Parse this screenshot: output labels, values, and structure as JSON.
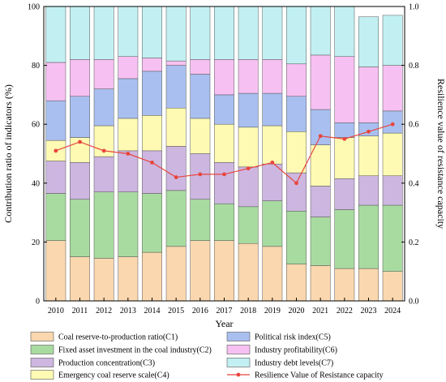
{
  "chart_data": {
    "type": "bar",
    "stacked": true,
    "title": "",
    "xlabel": "Year",
    "ylabel": "Contribution ratio of indicators (%)",
    "y2label": "Resilience value of resistance capacity",
    "ylim": [
      0,
      100
    ],
    "y2lim": [
      0.0,
      1.0
    ],
    "yticks": [
      "0",
      "20",
      "40",
      "60",
      "80",
      "100"
    ],
    "y2ticks": [
      "0.0",
      "0.2",
      "0.4",
      "0.6",
      "0.8",
      "1.0"
    ],
    "categories": [
      "2010",
      "2011",
      "2012",
      "2013",
      "2014",
      "2015",
      "2016",
      "2017",
      "2018",
      "2019",
      "2020",
      "2021",
      "2022",
      "2023",
      "2024"
    ],
    "legend_position": "bottom",
    "series": [
      {
        "name": "Coal reserve-to-production ratio(C1)",
        "color": "#fad7ae",
        "values": [
          20.5,
          15.0,
          14.5,
          15.0,
          16.5,
          18.5,
          20.5,
          20.5,
          19.5,
          18.5,
          12.5,
          12.0,
          11.0,
          11.0,
          10.0
        ]
      },
      {
        "name": "Fixed asset investment in the coal industry(C2)",
        "color": "#a8dba0",
        "values": [
          16.0,
          19.5,
          22.5,
          22.0,
          20.0,
          19.0,
          14.0,
          12.5,
          12.5,
          15.5,
          18.0,
          16.5,
          20.0,
          21.5,
          22.5
        ]
      },
      {
        "name": "Production concentration(C3)",
        "color": "#cdb6e0",
        "values": [
          11.0,
          12.5,
          12.0,
          14.0,
          14.5,
          15.0,
          15.5,
          14.0,
          13.5,
          12.5,
          13.0,
          10.5,
          10.5,
          10.0,
          10.0
        ]
      },
      {
        "name": "Emergency coal reserve scale(C4)",
        "color": "#fffab3",
        "values": [
          7.0,
          8.5,
          10.5,
          11.0,
          12.0,
          13.0,
          12.0,
          13.0,
          13.5,
          13.0,
          14.0,
          14.0,
          14.0,
          13.5,
          14.5
        ]
      },
      {
        "name": "Political risk index(C5)",
        "color": "#a9bff0",
        "values": [
          13.5,
          14.0,
          12.5,
          13.5,
          15.0,
          14.5,
          15.0,
          10.0,
          11.5,
          11.0,
          12.0,
          12.0,
          5.0,
          4.5,
          7.5
        ]
      },
      {
        "name": "Industry profitability(C6)",
        "color": "#f7c0f2",
        "values": [
          13.0,
          12.5,
          10.0,
          7.5,
          4.5,
          1.5,
          5.0,
          12.0,
          11.5,
          11.5,
          11.0,
          18.5,
          22.5,
          19.0,
          15.5
        ]
      },
      {
        "name": "Industry debt levels(C7)",
        "color": "#c2f0f2",
        "values": [
          19.0,
          18.0,
          18.0,
          17.0,
          17.5,
          18.5,
          18.0,
          18.0,
          18.0,
          18.0,
          19.5,
          16.5,
          17.0,
          17.0,
          17.0
        ]
      }
    ],
    "line": {
      "name": "Resilience Value of Resistance capacity",
      "color": "#e8463e",
      "axis": "y2",
      "values": [
        0.51,
        0.54,
        0.51,
        0.5,
        0.47,
        0.42,
        0.43,
        0.43,
        0.45,
        0.47,
        0.4,
        0.56,
        0.55,
        0.575,
        0.6
      ]
    },
    "legend_order": [
      0,
      4,
      1,
      5,
      2,
      6,
      3,
      "line"
    ]
  }
}
